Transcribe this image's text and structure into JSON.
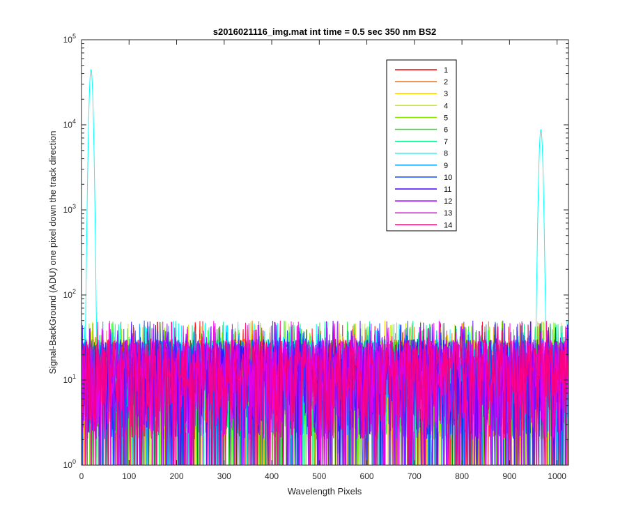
{
  "chart_data": {
    "type": "line",
    "title": "s2016021116_img.mat int time = 0.5 sec  350 nm BS2",
    "xlabel": "Wavelength Pixels",
    "ylabel": "Signal-BackGround (ADU) one pixel down the track direction",
    "xlim": [
      0,
      1024
    ],
    "ylim": [
      1,
      100000
    ],
    "yscale": "log",
    "x_ticks": [
      "0",
      "100",
      "200",
      "300",
      "400",
      "500",
      "600",
      "700",
      "800",
      "900",
      "1000"
    ],
    "y_ticks": [
      {
        "base": "10",
        "exp": "0"
      },
      {
        "base": "10",
        "exp": "1"
      },
      {
        "base": "10",
        "exp": "2"
      },
      {
        "base": "10",
        "exp": "3"
      },
      {
        "base": "10",
        "exp": "4"
      },
      {
        "base": "10",
        "exp": "5"
      }
    ],
    "grid": false,
    "legend_position": "top-right",
    "noise_floor": {
      "min": 1,
      "typical_max": 30,
      "occasional_max": 50
    },
    "series": [
      {
        "name": "1",
        "color": "#ff0000"
      },
      {
        "name": "2",
        "color": "#ff6600"
      },
      {
        "name": "3",
        "color": "#ffcc00"
      },
      {
        "name": "4",
        "color": "#ccee00"
      },
      {
        "name": "5",
        "color": "#88ee00"
      },
      {
        "name": "6",
        "color": "#22ee22"
      },
      {
        "name": "7",
        "color": "#00ee88"
      },
      {
        "name": "8",
        "color": "#00ffff",
        "peaks": [
          {
            "x": 20,
            "y": 45000
          },
          {
            "x": 966,
            "y": 8800
          }
        ]
      },
      {
        "name": "9",
        "color": "#0099ff"
      },
      {
        "name": "10",
        "color": "#0044ff"
      },
      {
        "name": "11",
        "color": "#4400ff"
      },
      {
        "name": "12",
        "color": "#9900ff"
      },
      {
        "name": "13",
        "color": "#ee00ee"
      },
      {
        "name": "14",
        "color": "#ff0077"
      }
    ]
  }
}
